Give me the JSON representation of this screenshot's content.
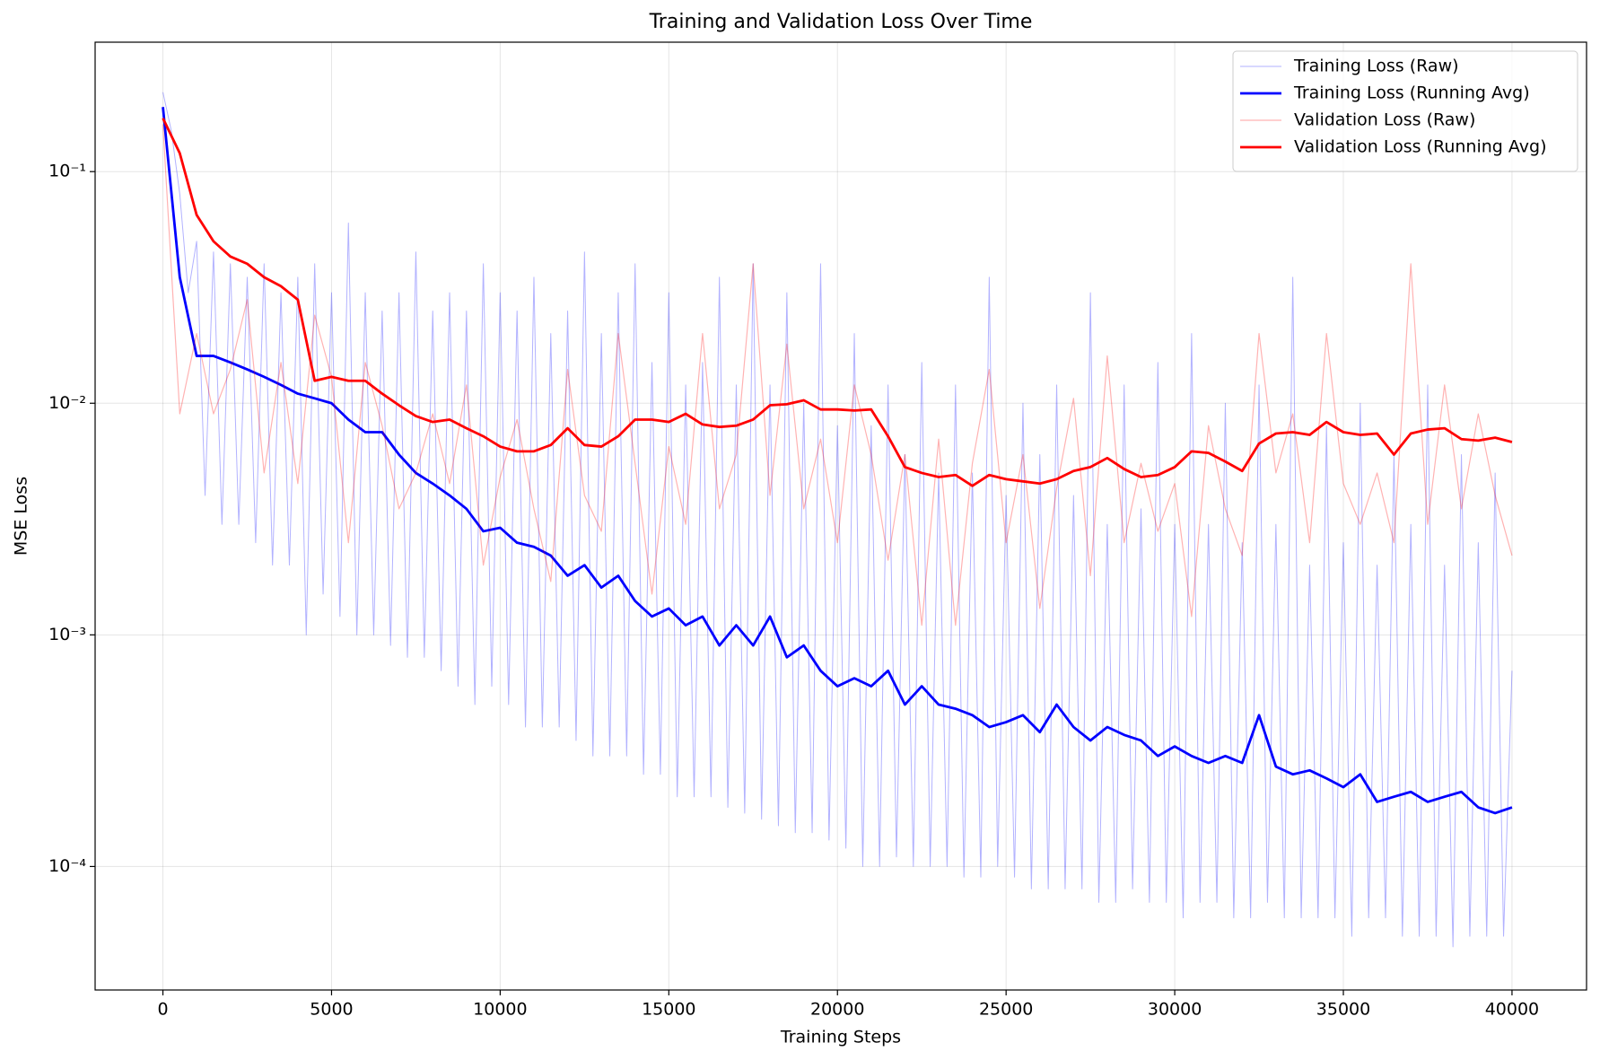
{
  "chart_data": {
    "type": "line",
    "title": "Training and Validation Loss Over Time",
    "x_label": "Training Steps",
    "y_label": "MSE Loss",
    "xlim": [
      -2010,
      42210
    ],
    "ylim": [
      2.93e-05,
      0.362
    ],
    "y_scale": "log",
    "xticks": [
      0,
      5000,
      10000,
      15000,
      20000,
      25000,
      30000,
      35000,
      40000
    ],
    "yticks": [
      {
        "value": 0.1,
        "label": "10⁻¹"
      },
      {
        "value": 0.01,
        "label": "10⁻²"
      },
      {
        "value": 0.001,
        "label": "10⁻³"
      },
      {
        "value": 0.0001,
        "label": "10⁻⁴"
      }
    ],
    "grid": true,
    "legend": "upper right",
    "series": [
      {
        "name": "Training Loss (Raw)",
        "color": "#0000ff",
        "opacity": 0.3,
        "line_width": 1,
        "x": [
          0,
          250,
          500,
          750,
          1000,
          1250,
          1500,
          1750,
          2000,
          2250,
          2500,
          2750,
          3000,
          3250,
          3500,
          3750,
          4000,
          4250,
          4500,
          4750,
          5000,
          5250,
          5500,
          5750,
          6000,
          6250,
          6500,
          6750,
          7000,
          7250,
          7500,
          7750,
          8000,
          8250,
          8500,
          8750,
          9000,
          9250,
          9500,
          9750,
          10000,
          10250,
          10500,
          10750,
          11000,
          11250,
          11500,
          11750,
          12000,
          12250,
          12500,
          12750,
          13000,
          13250,
          13500,
          13750,
          14000,
          14250,
          14500,
          14750,
          15000,
          15250,
          15500,
          15750,
          16000,
          16250,
          16500,
          16750,
          17000,
          17250,
          17500,
          17750,
          18000,
          18250,
          18500,
          18750,
          19000,
          19250,
          19500,
          19750,
          20000,
          20250,
          20500,
          20750,
          21000,
          21250,
          21500,
          21750,
          22000,
          22250,
          22500,
          22750,
          23000,
          23250,
          23500,
          23750,
          24000,
          24250,
          24500,
          24750,
          25000,
          25250,
          25500,
          25750,
          26000,
          26250,
          26500,
          26750,
          27000,
          27250,
          27500,
          27750,
          28000,
          28250,
          28500,
          28750,
          29000,
          29250,
          29500,
          29750,
          30000,
          30250,
          30500,
          30750,
          31000,
          31250,
          31500,
          31750,
          32000,
          32250,
          32500,
          32750,
          33000,
          33250,
          33500,
          33750,
          34000,
          34250,
          34500,
          34750,
          35000,
          35250,
          35500,
          35750,
          36000,
          36250,
          36500,
          36750,
          37000,
          37250,
          37500,
          37750,
          38000,
          38250,
          38500,
          38750,
          39000,
          39250,
          39500,
          39750,
          40000
        ],
        "values": [
          0.22,
          0.15,
          0.08,
          0.03,
          0.05,
          0.004,
          0.045,
          0.003,
          0.04,
          0.003,
          0.035,
          0.0025,
          0.04,
          0.002,
          0.03,
          0.002,
          0.035,
          0.001,
          0.04,
          0.0015,
          0.03,
          0.0012,
          0.06,
          0.001,
          0.03,
          0.001,
          0.025,
          0.0009,
          0.03,
          0.0008,
          0.045,
          0.0008,
          0.025,
          0.0007,
          0.03,
          0.0006,
          0.025,
          0.0005,
          0.04,
          0.0006,
          0.03,
          0.0005,
          0.025,
          0.0004,
          0.035,
          0.0004,
          0.02,
          0.0004,
          0.025,
          0.00035,
          0.045,
          0.0003,
          0.02,
          0.0003,
          0.03,
          0.0003,
          0.04,
          0.00025,
          0.015,
          0.00025,
          0.03,
          0.0002,
          0.012,
          0.0002,
          0.015,
          0.0002,
          0.035,
          0.00018,
          0.012,
          0.00017,
          0.04,
          0.00016,
          0.012,
          0.00015,
          0.03,
          0.00014,
          0.01,
          0.00014,
          0.04,
          0.00013,
          0.008,
          0.00012,
          0.02,
          0.0001,
          0.008,
          0.0001,
          0.012,
          0.00011,
          0.006,
          0.0001,
          0.015,
          0.0001,
          0.005,
          0.0001,
          0.012,
          9e-05,
          0.005,
          9e-05,
          0.035,
          0.0001,
          0.004,
          9e-05,
          0.01,
          8e-05,
          0.006,
          8e-05,
          0.012,
          8e-05,
          0.004,
          8e-05,
          0.03,
          7e-05,
          0.003,
          7e-05,
          0.012,
          8e-05,
          0.0035,
          7e-05,
          0.015,
          7e-05,
          0.003,
          6e-05,
          0.02,
          7e-05,
          0.003,
          7e-05,
          0.01,
          6e-05,
          0.0025,
          6e-05,
          0.012,
          7e-05,
          0.003,
          6e-05,
          0.035,
          6e-05,
          0.002,
          6e-05,
          0.008,
          6e-05,
          0.0025,
          5e-05,
          0.01,
          6e-05,
          0.002,
          6e-05,
          0.006,
          5e-05,
          0.003,
          5e-05,
          0.012,
          5e-05,
          0.002,
          4.5e-05,
          0.006,
          5e-05,
          0.0025,
          5e-05,
          0.005,
          5e-05,
          0.0007
        ]
      },
      {
        "name": "Training Loss (Running Avg)",
        "color": "#0000ff",
        "opacity": 1,
        "line_width": 2.8,
        "x": [
          0,
          500,
          1000,
          1500,
          2000,
          2500,
          3000,
          3500,
          4000,
          4500,
          5000,
          5500,
          6000,
          6500,
          7000,
          7500,
          8000,
          8500,
          9000,
          9500,
          10000,
          10500,
          11000,
          11500,
          12000,
          12500,
          13000,
          13500,
          14000,
          14500,
          15000,
          15500,
          16000,
          16500,
          17000,
          17500,
          18000,
          18500,
          19000,
          19500,
          20000,
          20500,
          21000,
          21500,
          22000,
          22500,
          23000,
          23500,
          24000,
          24500,
          25000,
          25500,
          26000,
          26500,
          27000,
          27500,
          28000,
          28500,
          29000,
          29500,
          30000,
          30500,
          31000,
          31500,
          32000,
          32500,
          33000,
          33500,
          34000,
          34500,
          35000,
          35500,
          36000,
          36500,
          37000,
          37500,
          38000,
          38500,
          39000,
          39500,
          40000
        ],
        "values": [
          0.19,
          0.035,
          0.016,
          0.016,
          0.015,
          0.014,
          0.013,
          0.012,
          0.011,
          0.0105,
          0.01,
          0.0085,
          0.0075,
          0.0075,
          0.006,
          0.005,
          0.0045,
          0.004,
          0.0035,
          0.0028,
          0.0029,
          0.0025,
          0.0024,
          0.0022,
          0.0018,
          0.002,
          0.0016,
          0.0018,
          0.0014,
          0.0012,
          0.0013,
          0.0011,
          0.0012,
          0.0009,
          0.0011,
          0.0009,
          0.0012,
          0.0008,
          0.0009,
          0.0007,
          0.0006,
          0.00065,
          0.0006,
          0.0007,
          0.0005,
          0.0006,
          0.0005,
          0.00048,
          0.00045,
          0.0004,
          0.00042,
          0.00045,
          0.00038,
          0.0005,
          0.0004,
          0.00035,
          0.0004,
          0.00037,
          0.00035,
          0.0003,
          0.00033,
          0.0003,
          0.00028,
          0.0003,
          0.00028,
          0.00045,
          0.00027,
          0.00025,
          0.00026,
          0.00024,
          0.00022,
          0.00025,
          0.00019,
          0.0002,
          0.00021,
          0.00019,
          0.0002,
          0.00021,
          0.00018,
          0.00017,
          0.00018
        ]
      },
      {
        "name": "Validation Loss (Raw)",
        "color": "#ff0000",
        "opacity": 0.3,
        "line_width": 1.2,
        "x": [
          0,
          500,
          1000,
          1500,
          2000,
          2500,
          3000,
          3500,
          4000,
          4500,
          5000,
          5500,
          6000,
          6500,
          7000,
          7500,
          8000,
          8500,
          9000,
          9500,
          10000,
          10500,
          11000,
          11500,
          12000,
          12500,
          13000,
          13500,
          14000,
          14500,
          15000,
          15500,
          16000,
          16500,
          17000,
          17500,
          18000,
          18500,
          19000,
          19500,
          20000,
          20500,
          21000,
          21500,
          22000,
          22500,
          23000,
          23500,
          24000,
          24500,
          25000,
          25500,
          26000,
          26500,
          27000,
          27500,
          28000,
          28500,
          29000,
          29500,
          30000,
          30500,
          31000,
          31500,
          32000,
          32500,
          33000,
          33500,
          34000,
          34500,
          35000,
          35500,
          36000,
          36500,
          37000,
          37500,
          38000,
          38500,
          39000,
          39500,
          40000
        ],
        "values": [
          0.16,
          0.009,
          0.02,
          0.009,
          0.014,
          0.028,
          0.005,
          0.015,
          0.0045,
          0.024,
          0.013,
          0.0025,
          0.015,
          0.008,
          0.0035,
          0.005,
          0.009,
          0.0045,
          0.012,
          0.002,
          0.0048,
          0.0085,
          0.0035,
          0.0017,
          0.014,
          0.004,
          0.0028,
          0.02,
          0.0055,
          0.0015,
          0.0065,
          0.003,
          0.02,
          0.0035,
          0.006,
          0.04,
          0.004,
          0.018,
          0.0035,
          0.007,
          0.0025,
          0.012,
          0.006,
          0.0021,
          0.006,
          0.0011,
          0.007,
          0.0011,
          0.0055,
          0.014,
          0.0025,
          0.006,
          0.0013,
          0.0043,
          0.0105,
          0.0018,
          0.016,
          0.0025,
          0.0055,
          0.0028,
          0.0045,
          0.0012,
          0.008,
          0.0035,
          0.0022,
          0.02,
          0.005,
          0.009,
          0.0025,
          0.02,
          0.0045,
          0.003,
          0.005,
          0.0025,
          0.04,
          0.003,
          0.012,
          0.0035,
          0.009,
          0.004,
          0.0022
        ]
      },
      {
        "name": "Validation Loss (Running Avg)",
        "color": "#ff0000",
        "opacity": 1,
        "line_width": 2.8,
        "x": [
          0,
          500,
          1000,
          1500,
          2000,
          2500,
          3000,
          3500,
          4000,
          4500,
          5000,
          5500,
          6000,
          6500,
          7000,
          7500,
          8000,
          8500,
          9000,
          9500,
          10000,
          10500,
          11000,
          11500,
          12000,
          12500,
          13000,
          13500,
          14000,
          14500,
          15000,
          15500,
          16000,
          16500,
          17000,
          17500,
          18000,
          18500,
          19000,
          19500,
          20000,
          20500,
          21000,
          21500,
          22000,
          22500,
          23000,
          23500,
          24000,
          24500,
          25000,
          25500,
          26000,
          26500,
          27000,
          27500,
          28000,
          28500,
          29000,
          29500,
          30000,
          30500,
          31000,
          31500,
          32000,
          32500,
          33000,
          33500,
          34000,
          34500,
          35000,
          35500,
          36000,
          36500,
          37000,
          37500,
          38000,
          38500,
          39000,
          39500,
          40000
        ],
        "values": [
          0.17,
          0.12,
          0.065,
          0.05,
          0.043,
          0.04,
          0.035,
          0.032,
          0.028,
          0.0125,
          0.013,
          0.0125,
          0.0125,
          0.011,
          0.0098,
          0.0088,
          0.0083,
          0.0085,
          0.0078,
          0.0072,
          0.0065,
          0.0062,
          0.0062,
          0.0066,
          0.0078,
          0.0066,
          0.0065,
          0.0072,
          0.0085,
          0.0085,
          0.0083,
          0.009,
          0.0081,
          0.0079,
          0.008,
          0.0085,
          0.0098,
          0.0099,
          0.0103,
          0.0094,
          0.0094,
          0.0093,
          0.0094,
          0.0072,
          0.0053,
          0.005,
          0.0048,
          0.0049,
          0.0044,
          0.0049,
          0.0047,
          0.0046,
          0.0045,
          0.0047,
          0.0051,
          0.0053,
          0.0058,
          0.0052,
          0.0048,
          0.0049,
          0.0053,
          0.0062,
          0.0061,
          0.0056,
          0.0051,
          0.0067,
          0.0074,
          0.0075,
          0.0073,
          0.0083,
          0.0075,
          0.0073,
          0.0074,
          0.006,
          0.0074,
          0.0077,
          0.0078,
          0.007,
          0.0069,
          0.0071,
          0.0068
        ]
      }
    ]
  }
}
